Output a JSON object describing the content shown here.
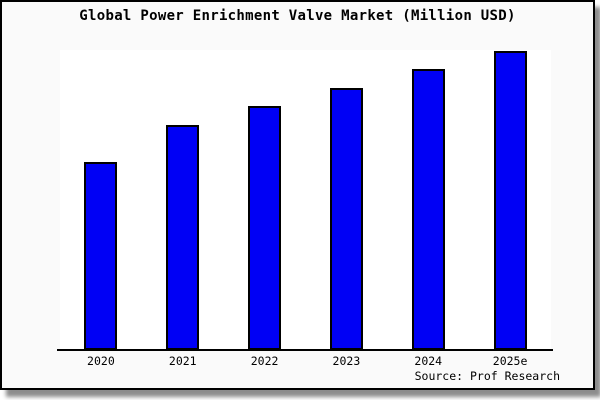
{
  "window": {
    "title": "Global Power Enrichment Valve Market (Million USD)"
  },
  "chart_data": {
    "type": "bar",
    "title": "Global Power Enrichment Valve Market (Million USD)",
    "categories": [
      "2020",
      "2021",
      "2022",
      "2023",
      "2024",
      "2025e"
    ],
    "values": [
      62.7,
      75.0,
      81.3,
      87.3,
      93.7,
      99.7
    ],
    "value_note": "no y-axis, gridlines or data labels are shown; values are relative bar heights normalized to ylim max",
    "xlabel": "",
    "ylabel": "",
    "ylim": [
      0,
      100
    ],
    "grid": false,
    "legend": false,
    "bar_color": "#0000F5",
    "bar_border_color": "#000000",
    "source_note": "Source: Prof Research"
  },
  "colors": {
    "canvas_bg": "#fafafa",
    "plot_bg": "#ffffff",
    "frame_border": "#000000",
    "text": "#000000"
  }
}
